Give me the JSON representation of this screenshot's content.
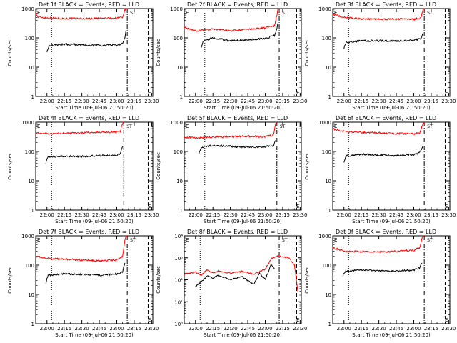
{
  "common": {
    "ylabel": "Counts/sec",
    "xlabel": "Start Time (09-Jul-06 21:50:20)",
    "x_ticks": [
      "22:00",
      "22:15",
      "22:30",
      "22:45",
      "23:00",
      "23:15",
      "23:30"
    ],
    "y_ticks_std": [
      "1",
      "10",
      "100",
      "1000"
    ],
    "y_ticks_exp": [
      "10⁰",
      "10¹",
      "10²",
      "10³",
      "10⁴"
    ],
    "annotation_top": "E",
    "annotation_bottom": "E",
    "annotation_flag": "ST"
  },
  "colors": {
    "events": "#000000",
    "lld": "#ff0000",
    "axes": "#000000"
  },
  "chart_data": [
    {
      "type": "line",
      "title": "Det 1f BLACK = Events, RED = LLD",
      "xlabel": "Start Time (09-Jul-06 21:50:20)",
      "ylabel": "Counts/sec",
      "ylim": [
        1,
        1000
      ],
      "yscale": "log",
      "vlines": {
        "dotted": "22:04",
        "dashdot": "23:09",
        "dashed": "23:27"
      },
      "series": [
        {
          "color": "#ff0000",
          "points": [
            [
              "21:50",
              700
            ],
            [
              "21:52",
              520
            ],
            [
              "22:00",
              480
            ],
            [
              "22:15",
              460
            ],
            [
              "22:30",
              455
            ],
            [
              "22:45",
              465
            ],
            [
              "23:00",
              470
            ],
            [
              "23:05",
              520
            ],
            [
              "23:07",
              900
            ],
            [
              "23:08",
              1000
            ]
          ]
        },
        {
          "color": "#000000",
          "points": [
            [
              "22:00",
              35
            ],
            [
              "22:02",
              55
            ],
            [
              "22:15",
              60
            ],
            [
              "22:30",
              58
            ],
            [
              "22:45",
              55
            ],
            [
              "23:00",
              58
            ],
            [
              "23:05",
              62
            ],
            [
              "23:07",
              100
            ],
            [
              "23:08",
              180
            ]
          ]
        }
      ]
    },
    {
      "type": "line",
      "title": "Det 2f BLACK = Events, RED = LLD",
      "xlabel": "Start Time (09-Jul-06 21:50:20)",
      "ylabel": "Counts/sec",
      "ylim": [
        1,
        1000
      ],
      "yscale": "log",
      "vlines": {
        "dotted": "22:08",
        "dashdot": "23:12",
        "dashed": "23:27"
      },
      "series": [
        {
          "color": "#ff0000",
          "points": [
            [
              "21:50",
              230
            ],
            [
              "21:55",
              200
            ],
            [
              "22:00",
              170
            ],
            [
              "22:15",
              200
            ],
            [
              "22:30",
              175
            ],
            [
              "22:45",
              195
            ],
            [
              "23:00",
              220
            ],
            [
              "23:08",
              260
            ],
            [
              "23:10",
              600
            ],
            [
              "23:11",
              1000
            ]
          ]
        },
        {
          "color": "#000000",
          "points": [
            [
              "22:05",
              50
            ],
            [
              "22:07",
              80
            ],
            [
              "22:15",
              100
            ],
            [
              "22:30",
              80
            ],
            [
              "22:45",
              85
            ],
            [
              "23:00",
              95
            ],
            [
              "23:08",
              120
            ],
            [
              "23:10",
              200
            ],
            [
              "23:11",
              320
            ]
          ]
        }
      ]
    },
    {
      "type": "line",
      "title": "Det 3f BLACK = Events, RED = LLD",
      "xlabel": "Start Time (09-Jul-06 21:50:20)",
      "ylabel": "Counts/sec",
      "ylim": [
        1,
        1000
      ],
      "yscale": "log",
      "vlines": {
        "dotted": "22:04",
        "dashdot": "23:09",
        "dashed": "23:27"
      },
      "series": [
        {
          "color": "#ff0000",
          "points": [
            [
              "21:50",
              650
            ],
            [
              "22:00",
              500
            ],
            [
              "22:15",
              450
            ],
            [
              "22:30",
              430
            ],
            [
              "22:45",
              440
            ],
            [
              "23:00",
              430
            ],
            [
              "23:06",
              480
            ],
            [
              "23:08",
              900
            ],
            [
              "23:09",
              1000
            ]
          ]
        },
        {
          "color": "#000000",
          "points": [
            [
              "22:00",
              45
            ],
            [
              "22:02",
              70
            ],
            [
              "22:15",
              80
            ],
            [
              "22:30",
              80
            ],
            [
              "22:45",
              78
            ],
            [
              "23:00",
              82
            ],
            [
              "23:06",
              95
            ],
            [
              "23:08",
              140
            ]
          ]
        }
      ]
    },
    {
      "type": "line",
      "title": "Det 4f BLACK = Events, RED = LLD",
      "xlabel": "Start Time (09-Jul-06 21:50:20)",
      "ylabel": "Counts/sec",
      "ylim": [
        1,
        1000
      ],
      "yscale": "log",
      "vlines": {
        "dotted": "22:04",
        "dashdot": "23:06",
        "dashed": "23:27"
      },
      "series": [
        {
          "color": "#ff0000",
          "points": [
            [
              "21:50",
              420
            ],
            [
              "22:00",
              400
            ],
            [
              "22:15",
              420
            ],
            [
              "22:30",
              440
            ],
            [
              "22:45",
              450
            ],
            [
              "23:00",
              460
            ],
            [
              "23:03",
              500
            ],
            [
              "23:05",
              900
            ],
            [
              "23:06",
              1000
            ]
          ]
        },
        {
          "color": "#000000",
          "points": [
            [
              "21:59",
              40
            ],
            [
              "22:01",
              65
            ],
            [
              "22:15",
              70
            ],
            [
              "22:30",
              68
            ],
            [
              "22:45",
              72
            ],
            [
              "23:00",
              75
            ],
            [
              "23:03",
              85
            ],
            [
              "23:05",
              150
            ]
          ]
        }
      ]
    },
    {
      "type": "line",
      "title": "Det 5f BLACK = Events, RED = LLD",
      "xlabel": "Start Time (09-Jul-06 21:50:20)",
      "ylabel": "Counts/sec",
      "ylim": [
        1,
        1000
      ],
      "yscale": "log",
      "vlines": {
        "dotted": "22:08",
        "dashdot": "23:10",
        "dashed": "23:27"
      },
      "series": [
        {
          "color": "#ff0000",
          "points": [
            [
              "21:50",
              300
            ],
            [
              "22:00",
              290
            ],
            [
              "22:15",
              310
            ],
            [
              "22:30",
              320
            ],
            [
              "22:45",
              330
            ],
            [
              "23:00",
              320
            ],
            [
              "23:07",
              360
            ],
            [
              "23:09",
              900
            ],
            [
              "23:10",
              1000
            ]
          ]
        },
        {
          "color": "#000000",
          "points": [
            [
              "22:03",
              90
            ],
            [
              "22:05",
              140
            ],
            [
              "22:15",
              160
            ],
            [
              "22:30",
              150
            ],
            [
              "22:45",
              140
            ],
            [
              "23:00",
              145
            ],
            [
              "23:07",
              160
            ],
            [
              "23:09",
              240
            ]
          ]
        }
      ]
    },
    {
      "type": "line",
      "title": "Det 6f BLACK = Events, RED = LLD",
      "xlabel": "Start Time (09-Jul-06 21:50:20)",
      "ylabel": "Counts/sec",
      "ylim": [
        1,
        1000
      ],
      "yscale": "log",
      "vlines": {
        "dotted": "22:04",
        "dashdot": "23:09",
        "dashed": "23:27"
      },
      "series": [
        {
          "color": "#ff0000",
          "points": [
            [
              "21:50",
              600
            ],
            [
              "22:00",
              480
            ],
            [
              "22:15",
              450
            ],
            [
              "22:30",
              430
            ],
            [
              "22:45",
              410
            ],
            [
              "23:00",
              400
            ],
            [
              "23:05",
              430
            ],
            [
              "23:08",
              900
            ],
            [
              "23:09",
              1000
            ]
          ]
        },
        {
          "color": "#000000",
          "points": [
            [
              "22:00",
              45
            ],
            [
              "22:02",
              70
            ],
            [
              "22:15",
              80
            ],
            [
              "22:30",
              75
            ],
            [
              "22:45",
              72
            ],
            [
              "23:00",
              78
            ],
            [
              "23:05",
              90
            ],
            [
              "23:08",
              150
            ]
          ]
        }
      ]
    },
    {
      "type": "line",
      "title": "Det 7f BLACK = Events, RED = LLD",
      "xlabel": "Start Time (09-Jul-06 21:50:20)",
      "ylabel": "Counts/sec",
      "ylim": [
        1,
        1000
      ],
      "yscale": "log",
      "vlines": {
        "dotted": "22:04",
        "dashdot": "23:09",
        "dashed": "23:27"
      },
      "series": [
        {
          "color": "#ff0000",
          "points": [
            [
              "21:50",
              200
            ],
            [
              "22:00",
              170
            ],
            [
              "22:15",
              160
            ],
            [
              "22:30",
              150
            ],
            [
              "22:45",
              140
            ],
            [
              "23:00",
              150
            ],
            [
              "23:05",
              200
            ],
            [
              "23:07",
              700
            ],
            [
              "23:08",
              1000
            ]
          ]
        },
        {
          "color": "#000000",
          "points": [
            [
              "21:59",
              25
            ],
            [
              "22:01",
              45
            ],
            [
              "22:15",
              50
            ],
            [
              "22:30",
              48
            ],
            [
              "22:45",
              45
            ],
            [
              "23:00",
              50
            ],
            [
              "23:05",
              60
            ],
            [
              "23:07",
              120
            ]
          ]
        }
      ]
    },
    {
      "type": "line",
      "title": "Det 8f BLACK = Events, RED = LLD",
      "xlabel": "Start Time (09-Jul-06 21:50:20)",
      "ylabel": "Counts/sec",
      "ylim": [
        1,
        10000
      ],
      "yscale": "log",
      "vlines": {
        "dotted": "22:04",
        "dashdot": "23:12",
        "dashed": "23:27"
      },
      "series": [
        {
          "color": "#ff0000",
          "points": [
            [
              "21:50",
              180
            ],
            [
              "22:00",
              220
            ],
            [
              "22:05",
              160
            ],
            [
              "22:10",
              280
            ],
            [
              "22:15",
              200
            ],
            [
              "22:20",
              250
            ],
            [
              "22:30",
              200
            ],
            [
              "22:40",
              240
            ],
            [
              "22:50",
              180
            ],
            [
              "23:00",
              300
            ],
            [
              "23:05",
              900
            ],
            [
              "23:10",
              1200
            ],
            [
              "23:15",
              1100
            ],
            [
              "23:20",
              1000
            ],
            [
              "23:25",
              500
            ],
            [
              "23:28",
              30
            ]
          ]
        },
        {
          "color": "#000000",
          "points": [
            [
              "22:00",
              50
            ],
            [
              "22:05",
              80
            ],
            [
              "22:10",
              150
            ],
            [
              "22:15",
              120
            ],
            [
              "22:20",
              160
            ],
            [
              "22:30",
              100
            ],
            [
              "22:40",
              140
            ],
            [
              "22:50",
              60
            ],
            [
              "22:55",
              200
            ],
            [
              "23:00",
              100
            ],
            [
              "23:05",
              500
            ],
            [
              "23:08",
              300
            ]
          ]
        }
      ]
    },
    {
      "type": "line",
      "title": "Det 9f BLACK = Events, RED = LLD",
      "xlabel": "Start Time (09-Jul-06 21:50:20)",
      "ylabel": "Counts/sec",
      "ylim": [
        1,
        1000
      ],
      "yscale": "log",
      "vlines": {
        "dotted": "22:04",
        "dashdot": "23:09",
        "dashed": "23:27"
      },
      "series": [
        {
          "color": "#ff0000",
          "points": [
            [
              "21:50",
              400
            ],
            [
              "22:00",
              300
            ],
            [
              "22:15",
              290
            ],
            [
              "22:30",
              280
            ],
            [
              "22:45",
              300
            ],
            [
              "23:00",
              320
            ],
            [
              "23:05",
              400
            ],
            [
              "23:07",
              800
            ],
            [
              "23:08",
              1000
            ]
          ]
        },
        {
          "color": "#000000",
          "points": [
            [
              "21:59",
              45
            ],
            [
              "22:01",
              60
            ],
            [
              "22:15",
              70
            ],
            [
              "22:30",
              65
            ],
            [
              "22:45",
              62
            ],
            [
              "23:00",
              68
            ],
            [
              "23:05",
              80
            ],
            [
              "23:07",
              120
            ]
          ]
        }
      ]
    }
  ]
}
